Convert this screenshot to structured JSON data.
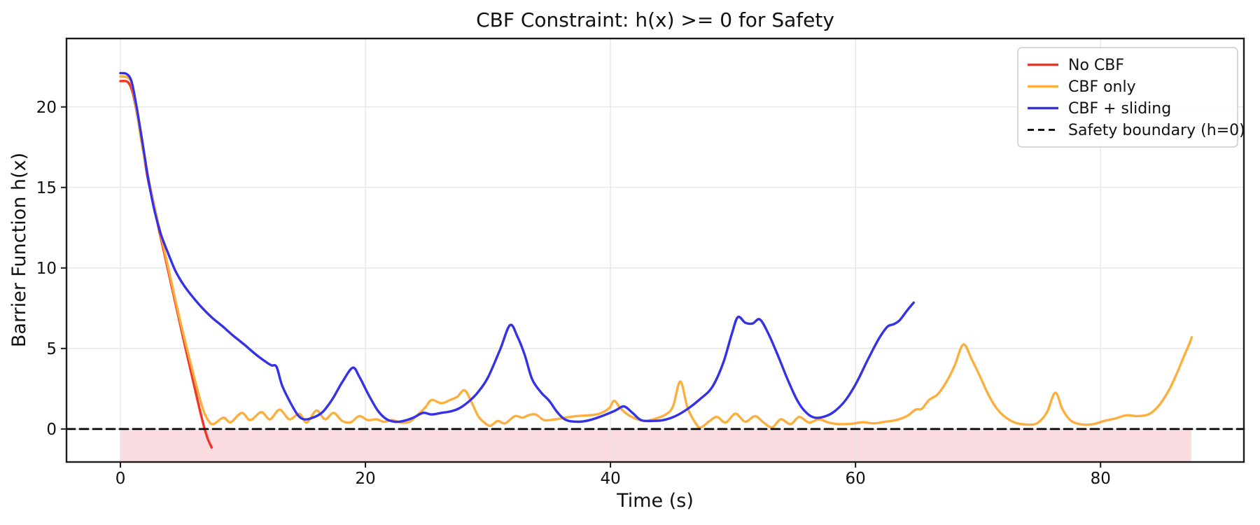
{
  "chart_data": {
    "type": "line",
    "title": "CBF Constraint: h(x) >= 0 for Safety",
    "xlabel": "Time (s)",
    "ylabel": "Barrier Function h(x)",
    "xlim": [
      -4.4,
      91.7
    ],
    "ylim": [
      -2.05,
      24.25
    ],
    "xticks": [
      0,
      20,
      40,
      60,
      80
    ],
    "yticks": [
      0,
      5,
      10,
      15,
      20
    ],
    "grid": true,
    "grid_color": "#e4e4e4",
    "background_color": "#ffffff",
    "spine_color": "#1c1c1c",
    "tick_label_color": "#111111",
    "legend_position": "upper right",
    "unsafe_region": {
      "x_start": 0,
      "x_end": 87.4,
      "y_top": 0,
      "y_bottom": -2.05,
      "color": "#fbdce0"
    },
    "series": [
      {
        "name": "No CBF",
        "color": "#f43325",
        "style": "solid",
        "points": [
          [
            0,
            21.6
          ],
          [
            0.6,
            21.55
          ],
          [
            1.0,
            20.9
          ],
          [
            1.4,
            19.4
          ],
          [
            1.8,
            17.6
          ],
          [
            2.2,
            15.7
          ],
          [
            2.7,
            13.95
          ],
          [
            3.2,
            12.2
          ],
          [
            3.7,
            10.5
          ],
          [
            4.2,
            8.8
          ],
          [
            4.7,
            7.1
          ],
          [
            5.2,
            5.4
          ],
          [
            5.7,
            3.75
          ],
          [
            6.2,
            2.1
          ],
          [
            6.7,
            0.5
          ],
          [
            7.1,
            -0.55
          ],
          [
            7.45,
            -1.15
          ]
        ]
      },
      {
        "name": "CBF only",
        "color": "#fcaf3e",
        "style": "solid",
        "points": [
          [
            0,
            21.9
          ],
          [
            0.5,
            21.85
          ],
          [
            0.9,
            21.5
          ],
          [
            1.3,
            19.9
          ],
          [
            1.7,
            17.9
          ],
          [
            2.2,
            15.9
          ],
          [
            2.7,
            14.1
          ],
          [
            3.2,
            12.4
          ],
          [
            3.7,
            10.7
          ],
          [
            4.2,
            9.0
          ],
          [
            4.7,
            7.3
          ],
          [
            5.2,
            5.7
          ],
          [
            5.8,
            3.9
          ],
          [
            6.3,
            2.4
          ],
          [
            6.8,
            1.1
          ],
          [
            7.2,
            0.5
          ],
          [
            7.6,
            0.3
          ],
          [
            8.4,
            0.7
          ],
          [
            9.0,
            0.42
          ],
          [
            9.9,
            1.0
          ],
          [
            10.6,
            0.55
          ],
          [
            11.5,
            1.05
          ],
          [
            12.2,
            0.6
          ],
          [
            13.0,
            1.2
          ],
          [
            13.8,
            0.6
          ],
          [
            14.6,
            0.95
          ],
          [
            15.2,
            0.4
          ],
          [
            16.0,
            1.15
          ],
          [
            16.7,
            0.6
          ],
          [
            17.4,
            1.0
          ],
          [
            18.1,
            0.5
          ],
          [
            18.8,
            0.42
          ],
          [
            19.5,
            0.8
          ],
          [
            20.2,
            0.55
          ],
          [
            20.9,
            0.6
          ],
          [
            21.5,
            0.45
          ],
          [
            22.2,
            0.55
          ],
          [
            22.9,
            0.4
          ],
          [
            23.6,
            0.45
          ],
          [
            24.3,
            0.9
          ],
          [
            24.9,
            1.35
          ],
          [
            25.4,
            1.8
          ],
          [
            26.2,
            1.6
          ],
          [
            26.9,
            1.8
          ],
          [
            27.5,
            2.0
          ],
          [
            28.1,
            2.4
          ],
          [
            28.7,
            1.6
          ],
          [
            29.2,
            0.8
          ],
          [
            29.7,
            0.4
          ],
          [
            30.2,
            0.2
          ],
          [
            30.8,
            0.5
          ],
          [
            31.4,
            0.35
          ],
          [
            32.2,
            0.8
          ],
          [
            32.8,
            0.7
          ],
          [
            33.3,
            0.85
          ],
          [
            33.9,
            0.9
          ],
          [
            34.6,
            0.55
          ],
          [
            35.5,
            0.6
          ],
          [
            36.3,
            0.7
          ],
          [
            37.2,
            0.8
          ],
          [
            38.2,
            0.85
          ],
          [
            39.1,
            0.95
          ],
          [
            39.9,
            1.3
          ],
          [
            40.3,
            1.75
          ],
          [
            40.8,
            1.3
          ],
          [
            41.4,
            0.9
          ],
          [
            42.2,
            0.6
          ],
          [
            42.9,
            0.5
          ],
          [
            43.7,
            0.65
          ],
          [
            44.5,
            0.9
          ],
          [
            45.1,
            1.4
          ],
          [
            45.7,
            2.95
          ],
          [
            46.3,
            1.3
          ],
          [
            47.0,
            0.3
          ],
          [
            47.4,
            0.1
          ],
          [
            48.1,
            0.5
          ],
          [
            48.7,
            0.75
          ],
          [
            49.4,
            0.4
          ],
          [
            50.2,
            0.95
          ],
          [
            51.0,
            0.45
          ],
          [
            51.8,
            0.8
          ],
          [
            52.5,
            0.4
          ],
          [
            53.2,
            0.1
          ],
          [
            53.9,
            0.6
          ],
          [
            54.7,
            0.3
          ],
          [
            55.4,
            0.75
          ],
          [
            56.2,
            0.4
          ],
          [
            57.0,
            0.6
          ],
          [
            57.8,
            0.4
          ],
          [
            58.7,
            0.3
          ],
          [
            59.7,
            0.33
          ],
          [
            60.6,
            0.42
          ],
          [
            61.5,
            0.35
          ],
          [
            62.4,
            0.45
          ],
          [
            63.3,
            0.55
          ],
          [
            64.2,
            0.8
          ],
          [
            64.9,
            1.2
          ],
          [
            65.4,
            1.25
          ],
          [
            66.0,
            1.8
          ],
          [
            66.7,
            2.15
          ],
          [
            67.4,
            2.9
          ],
          [
            68.1,
            3.95
          ],
          [
            68.8,
            5.25
          ],
          [
            69.5,
            4.3
          ],
          [
            70.2,
            3.2
          ],
          [
            70.8,
            2.2
          ],
          [
            71.5,
            1.3
          ],
          [
            72.2,
            0.75
          ],
          [
            73.0,
            0.4
          ],
          [
            73.9,
            0.28
          ],
          [
            74.8,
            0.35
          ],
          [
            75.6,
            1.0
          ],
          [
            76.3,
            2.25
          ],
          [
            76.9,
            1.2
          ],
          [
            77.6,
            0.5
          ],
          [
            78.5,
            0.28
          ],
          [
            79.4,
            0.3
          ],
          [
            80.3,
            0.5
          ],
          [
            81.2,
            0.65
          ],
          [
            82.1,
            0.85
          ],
          [
            83.0,
            0.8
          ],
          [
            83.9,
            0.9
          ],
          [
            84.7,
            1.4
          ],
          [
            85.5,
            2.3
          ],
          [
            86.2,
            3.4
          ],
          [
            86.8,
            4.5
          ],
          [
            87.2,
            5.2
          ],
          [
            87.45,
            5.7
          ]
        ]
      },
      {
        "name": "CBF + sliding",
        "color": "#3431e6",
        "style": "solid",
        "points": [
          [
            0,
            22.1
          ],
          [
            0.5,
            22.05
          ],
          [
            0.9,
            21.6
          ],
          [
            1.3,
            20.1
          ],
          [
            1.8,
            17.8
          ],
          [
            2.3,
            15.4
          ],
          [
            2.8,
            13.5
          ],
          [
            3.3,
            12.1
          ],
          [
            3.9,
            10.9
          ],
          [
            4.5,
            9.8
          ],
          [
            5.2,
            8.9
          ],
          [
            5.9,
            8.2
          ],
          [
            6.7,
            7.5
          ],
          [
            7.5,
            6.9
          ],
          [
            8.3,
            6.4
          ],
          [
            9.2,
            5.8
          ],
          [
            10.1,
            5.25
          ],
          [
            11.1,
            4.6
          ],
          [
            12.0,
            4.1
          ],
          [
            12.35,
            3.95
          ],
          [
            12.75,
            3.85
          ],
          [
            13.2,
            2.7
          ],
          [
            13.9,
            1.6
          ],
          [
            14.5,
            0.85
          ],
          [
            15.0,
            0.6
          ],
          [
            15.7,
            0.7
          ],
          [
            16.5,
            1.05
          ],
          [
            17.3,
            1.85
          ],
          [
            18.1,
            2.9
          ],
          [
            18.95,
            3.8
          ],
          [
            19.5,
            3.25
          ],
          [
            20.2,
            2.2
          ],
          [
            21.0,
            1.15
          ],
          [
            21.7,
            0.62
          ],
          [
            22.4,
            0.45
          ],
          [
            23.1,
            0.5
          ],
          [
            23.9,
            0.7
          ],
          [
            24.7,
            1.0
          ],
          [
            25.4,
            0.9
          ],
          [
            26.2,
            1.0
          ],
          [
            27.0,
            1.1
          ],
          [
            27.7,
            1.3
          ],
          [
            28.5,
            1.75
          ],
          [
            29.2,
            2.3
          ],
          [
            30.0,
            3.2
          ],
          [
            31.0,
            4.95
          ],
          [
            31.8,
            6.45
          ],
          [
            32.4,
            5.75
          ],
          [
            33.0,
            4.6
          ],
          [
            33.6,
            3.1
          ],
          [
            34.3,
            2.3
          ],
          [
            35.0,
            1.75
          ],
          [
            35.7,
            1.0
          ],
          [
            36.4,
            0.55
          ],
          [
            37.4,
            0.45
          ],
          [
            38.3,
            0.55
          ],
          [
            39.3,
            0.8
          ],
          [
            40.4,
            1.15
          ],
          [
            41.1,
            1.4
          ],
          [
            41.8,
            1.0
          ],
          [
            42.5,
            0.55
          ],
          [
            43.4,
            0.5
          ],
          [
            44.3,
            0.55
          ],
          [
            45.3,
            0.8
          ],
          [
            46.3,
            1.25
          ],
          [
            47.3,
            1.85
          ],
          [
            48.3,
            2.6
          ],
          [
            49.2,
            4.1
          ],
          [
            49.9,
            5.9
          ],
          [
            50.4,
            6.95
          ],
          [
            51.0,
            6.6
          ],
          [
            51.6,
            6.55
          ],
          [
            52.2,
            6.8
          ],
          [
            52.9,
            5.9
          ],
          [
            53.7,
            4.5
          ],
          [
            54.5,
            3.0
          ],
          [
            55.3,
            1.7
          ],
          [
            56.0,
            1.0
          ],
          [
            56.7,
            0.7
          ],
          [
            57.5,
            0.78
          ],
          [
            58.3,
            1.1
          ],
          [
            59.2,
            1.8
          ],
          [
            60.1,
            2.9
          ],
          [
            61.0,
            4.3
          ],
          [
            61.9,
            5.6
          ],
          [
            62.6,
            6.35
          ],
          [
            63.1,
            6.5
          ],
          [
            63.6,
            6.75
          ],
          [
            64.2,
            7.35
          ],
          [
            64.75,
            7.85
          ]
        ]
      },
      {
        "name": "Safety boundary (h=0)",
        "color": "#000000",
        "style": "dashed",
        "points": [
          [
            -4.4,
            0
          ],
          [
            91.7,
            0
          ]
        ]
      }
    ]
  }
}
